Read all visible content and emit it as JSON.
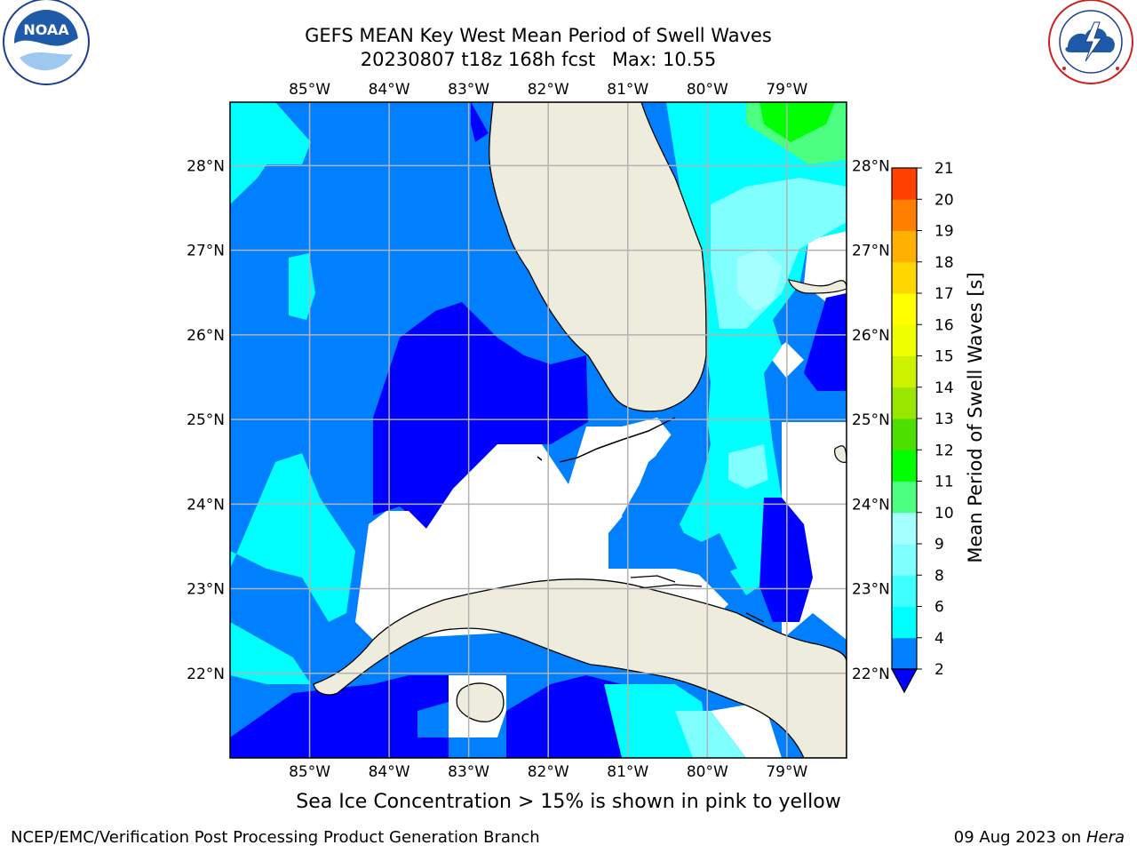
{
  "header": {
    "title_line1": "GEFS MEAN Key West Mean Period of Swell Waves",
    "title_date": "20230807 t18z 168h fcst",
    "title_max": "Max: 10.55"
  },
  "logos": {
    "left": {
      "name": "noaa-logo",
      "text": "NOAA",
      "ring_text": "NATIONAL OCEANIC AND ATMOSPHERIC ADMINISTRATION · U.S. DEPARTMENT OF COMMERCE"
    },
    "right": {
      "name": "nws-logo",
      "ring_text": "NATIONAL WEATHER SERVICE"
    }
  },
  "map": {
    "lon_labels": [
      "85°W",
      "84°W",
      "83°W",
      "82°W",
      "81°W",
      "80°W",
      "79°W"
    ],
    "lon_values": [
      -85,
      -84,
      -83,
      -82,
      -81,
      -80,
      -79
    ],
    "lat_labels": [
      "28°N",
      "27°N",
      "26°N",
      "25°N",
      "24°N",
      "23°N",
      "22°N"
    ],
    "lat_values": [
      28,
      27,
      26,
      25,
      24,
      23,
      22
    ],
    "lon_range": [
      -86.0,
      -78.25
    ],
    "lat_range": [
      21.0,
      28.75
    ],
    "colors": {
      "land": "#eeecdc",
      "deep": "#0000ff",
      "mid": "#0080ff",
      "cyan": "#00ffff",
      "light": "#80ffff",
      "pale": "#a6ffff",
      "green": "#00ff00",
      "lightgreen": "#4dff80",
      "grid": "#b3b3b3"
    }
  },
  "colorbar": {
    "title": "Mean Period of Swell Waves [s]",
    "ticks": [
      "2",
      "4",
      "6",
      "8",
      "9",
      "10",
      "11",
      "12",
      "13",
      "14",
      "15",
      "16",
      "17",
      "18",
      "19",
      "20",
      "21"
    ],
    "colors": [
      "#0080ff",
      "#00ffff",
      "#40ffff",
      "#80ffff",
      "#a6ffff",
      "#4dff80",
      "#00ff00",
      "#4ddf00",
      "#99e600",
      "#ccf200",
      "#eeff00",
      "#ffff00",
      "#ffd700",
      "#ffb000",
      "#ff8000",
      "#ff4000",
      "#ff2000",
      "#ff0000"
    ],
    "under_color": "#0000ff"
  },
  "caption": "Sea Ice Concentration > 15% is shown in pink to yellow",
  "footer": {
    "left": "NCEP/EMC/Verification Post Processing Product Generation Branch",
    "right_date": "09 Aug 2023 on",
    "right_host": "Hera"
  }
}
